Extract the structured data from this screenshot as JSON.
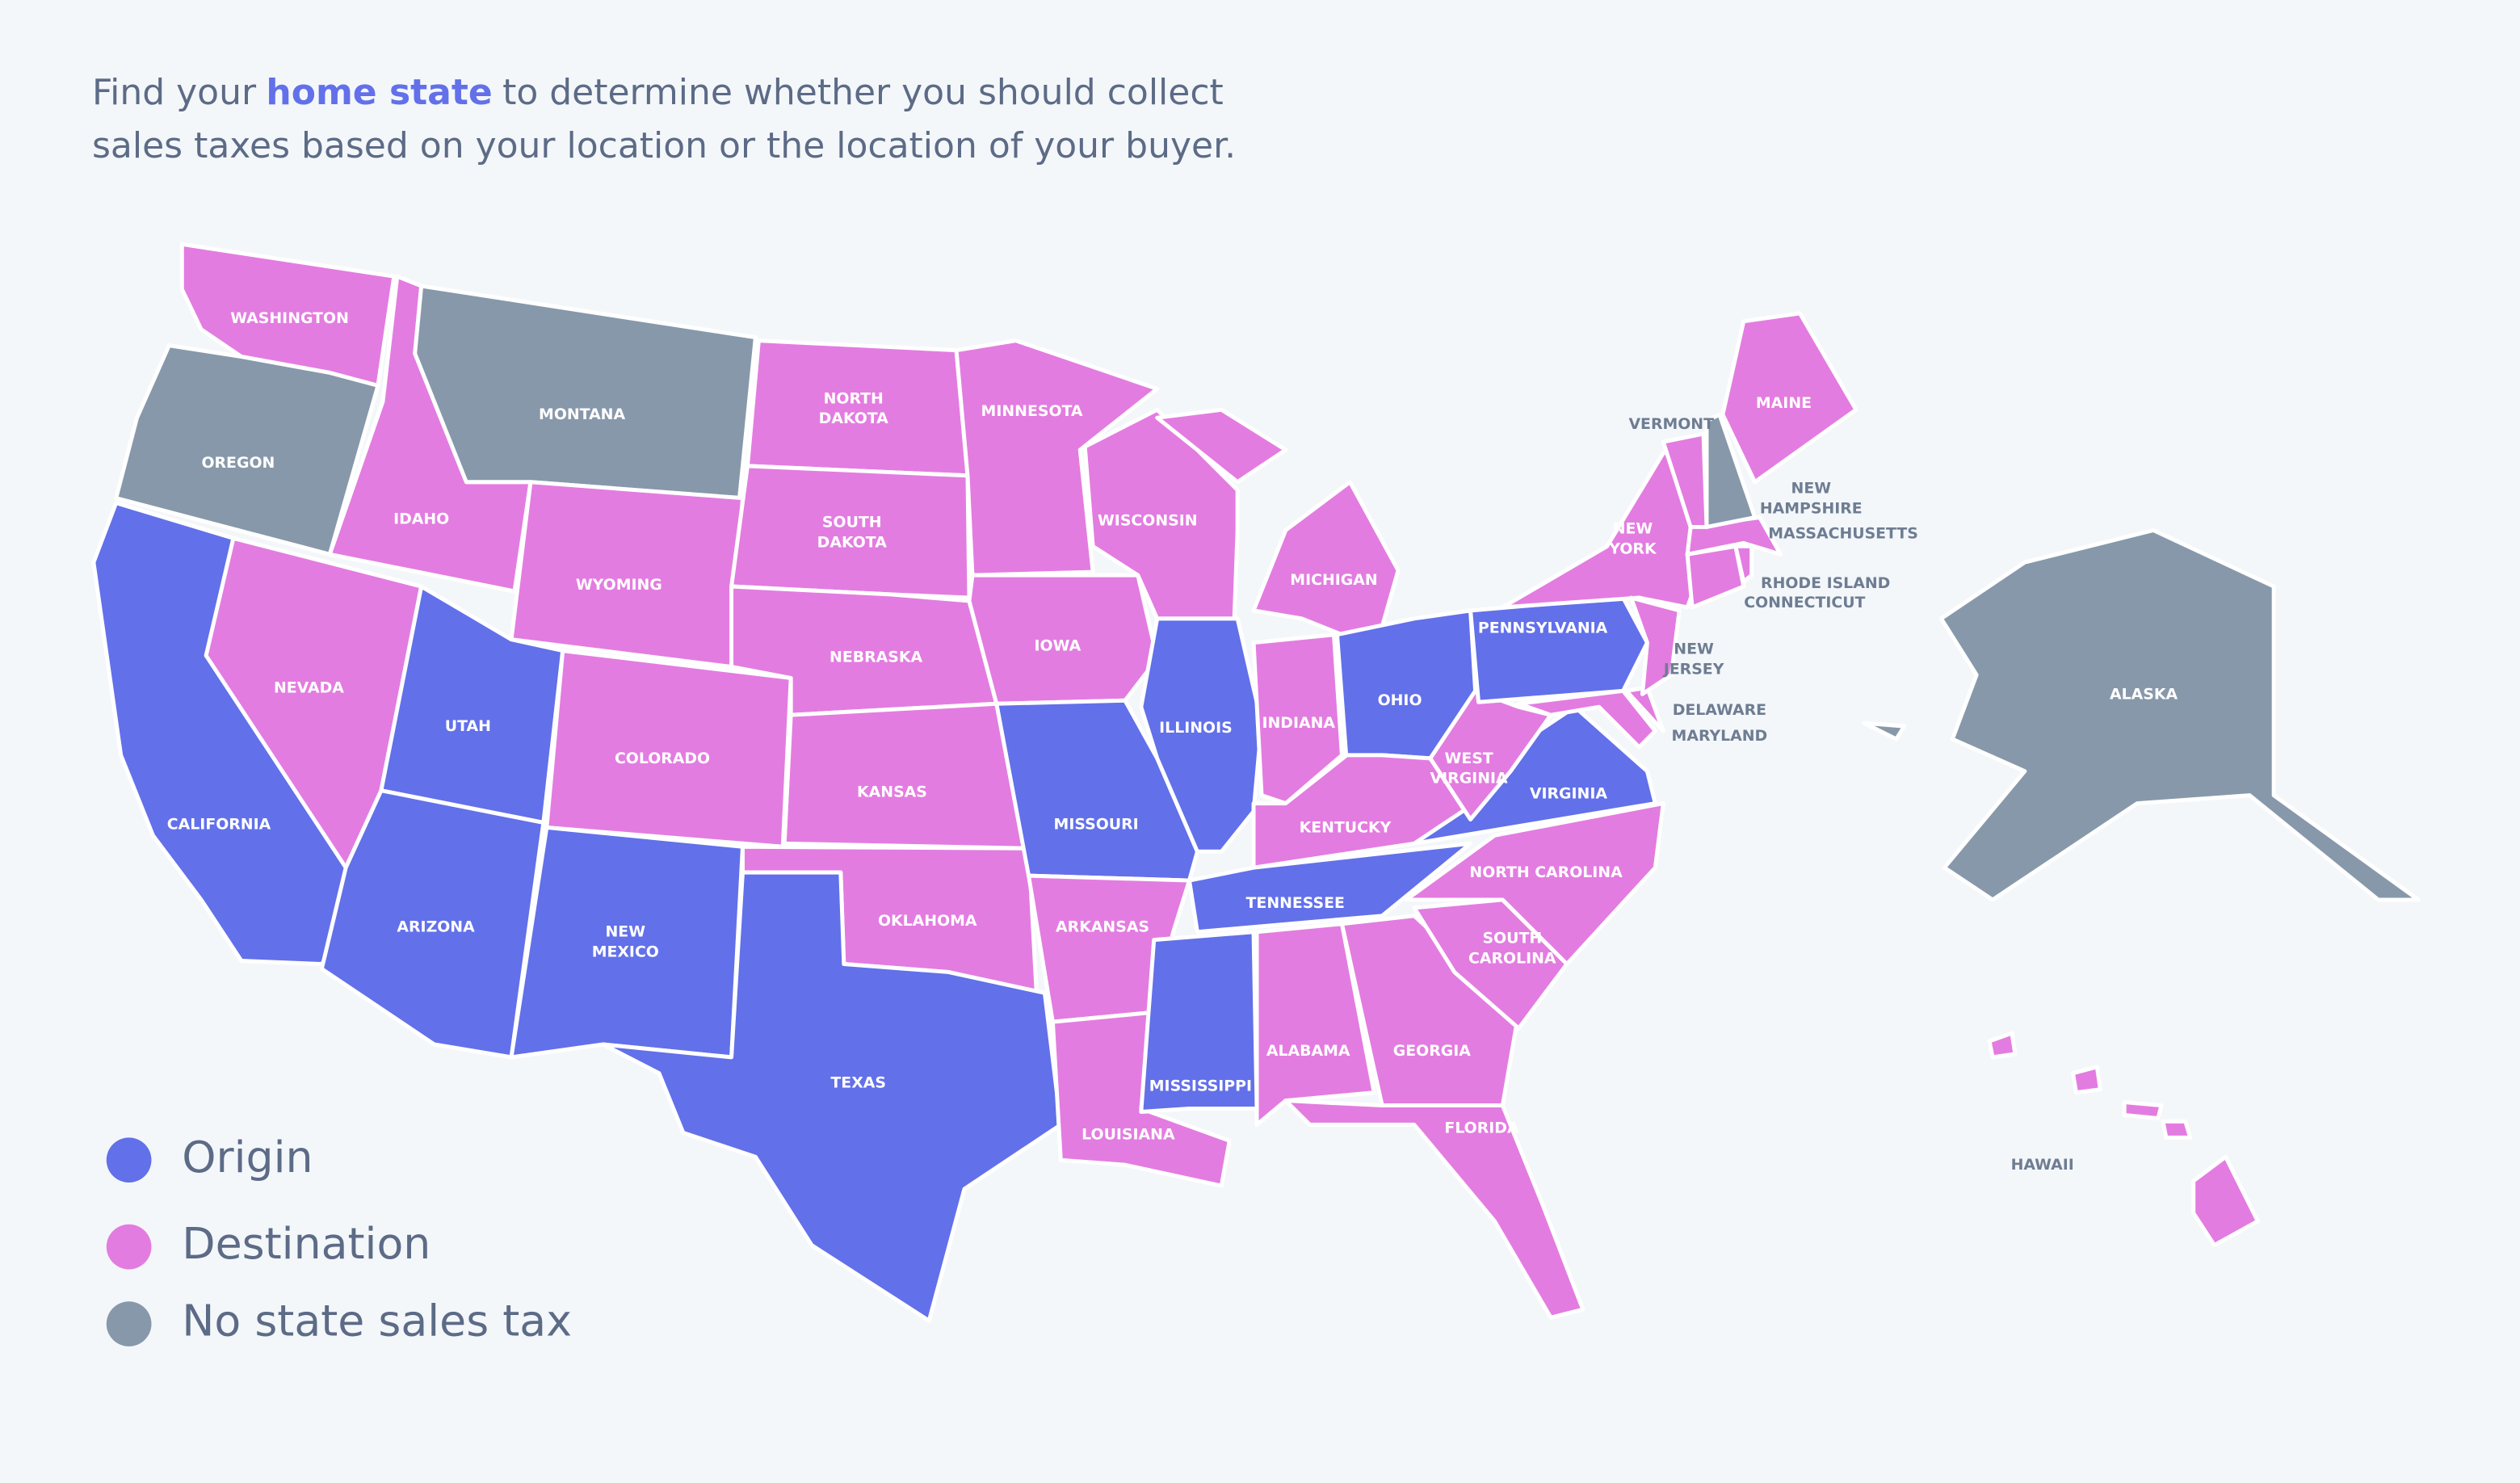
{
  "intro": {
    "line1": [
      "Find your",
      "home state",
      "to determine whether you should collect"
    ],
    "line2": "sales taxes based on your location or the location of your buyer."
  },
  "legend": [
    {
      "label": "Origin",
      "color": "#6270ea"
    },
    {
      "label": "Destination",
      "color": "#e37ce0"
    },
    {
      "label": "No state sales tax",
      "color": "#8798aa"
    }
  ],
  "states": [
    {
      "label": [
        "WASHINGTON"
      ],
      "category": "Destination"
    },
    {
      "label": [
        "OREGON"
      ],
      "category": "No state sales tax"
    },
    {
      "label": [
        "CALIFORNIA"
      ],
      "category": "Origin"
    },
    {
      "label": [
        "IDAHO"
      ],
      "category": "Destination"
    },
    {
      "label": [
        "MONTANA"
      ],
      "category": "No state sales tax"
    },
    {
      "label": [
        "WYOMING"
      ],
      "category": "Destination"
    },
    {
      "label": [
        "NEVADA"
      ],
      "category": "Destination"
    },
    {
      "label": [
        "UTAH"
      ],
      "category": "Origin"
    },
    {
      "label": [
        "ARIZONA"
      ],
      "category": "Origin"
    },
    {
      "label": [
        "COLORADO"
      ],
      "category": "Destination"
    },
    {
      "label": [
        "NEW",
        "MEXICO"
      ],
      "category": "Origin"
    },
    {
      "label": [
        "NORTH",
        "DAKOTA"
      ],
      "category": "Destination"
    },
    {
      "label": [
        "SOUTH",
        "DAKOTA"
      ],
      "category": "Destination"
    },
    {
      "label": [
        "NEBRASKA"
      ],
      "category": "Destination"
    },
    {
      "label": [
        "KANSAS"
      ],
      "category": "Destination"
    },
    {
      "label": [
        "OKLAHOMA"
      ],
      "category": "Destination"
    },
    {
      "label": [
        "TEXAS"
      ],
      "category": "Origin"
    },
    {
      "label": [
        "MINNESOTA"
      ],
      "category": "Destination"
    },
    {
      "label": [
        "IOWA"
      ],
      "category": "Destination"
    },
    {
      "label": [
        "MISSOURI"
      ],
      "category": "Origin"
    },
    {
      "label": [
        "ARKANSAS"
      ],
      "category": "Destination"
    },
    {
      "label": [
        "LOUISIANA"
      ],
      "category": "Destination"
    },
    {
      "label": [
        "WISCONSIN"
      ],
      "category": "Destination"
    },
    {
      "label": [
        "ILLINOIS"
      ],
      "category": "Origin"
    },
    {
      "label": [
        "MICHIGAN"
      ],
      "category": "Destination"
    },
    {
      "label": [
        "INDIANA"
      ],
      "category": "Destination"
    },
    {
      "label": [
        "OHIO"
      ],
      "category": "Origin"
    },
    {
      "label": [
        "KENTUCKY"
      ],
      "category": "Destination"
    },
    {
      "label": [
        "TENNESSEE"
      ],
      "category": "Origin"
    },
    {
      "label": [
        "MISSISSIPPI"
      ],
      "category": "Origin"
    },
    {
      "label": [
        "ALABAMA"
      ],
      "category": "Destination"
    },
    {
      "label": [
        "GEORGIA"
      ],
      "category": "Destination"
    },
    {
      "label": [
        "FLORIDA"
      ],
      "category": "Destination"
    },
    {
      "label": [
        "SOUTH",
        "CAROLINA"
      ],
      "category": "Destination"
    },
    {
      "label": [
        "NORTH CAROLINA"
      ],
      "category": "Destination"
    },
    {
      "label": [
        "VIRGINIA"
      ],
      "category": "Origin"
    },
    {
      "label": [
        "WEST",
        "VIRGINIA"
      ],
      "category": "Destination"
    },
    {
      "label": [
        "PENNSYLVANIA"
      ],
      "category": "Origin"
    },
    {
      "label": [
        "NEW",
        "YORK"
      ],
      "category": "Destination"
    },
    {
      "label": [
        "MARYLAND"
      ],
      "category": "Destination"
    },
    {
      "label": [
        "DELAWARE"
      ],
      "category": "Destination"
    },
    {
      "label": [
        "NEW",
        "JERSEY"
      ],
      "category": "Destination"
    },
    {
      "label": [
        "CONNECTICUT"
      ],
      "category": "Destination"
    },
    {
      "label": [
        "RHODE ISLAND"
      ],
      "category": "Destination"
    },
    {
      "label": [
        "MASSACHUSETTS"
      ],
      "category": "Destination"
    },
    {
      "label": [
        "VERMONT"
      ],
      "category": "Destination"
    },
    {
      "label": [
        "NEW",
        "HAMPSHIRE"
      ],
      "category": "No state sales tax"
    },
    {
      "label": [
        "MAINE"
      ],
      "category": "Destination"
    },
    {
      "label": [
        "ALASKA"
      ],
      "category": "No state sales tax"
    },
    {
      "label": [
        "HAWAII"
      ],
      "category": "Destination"
    }
  ]
}
